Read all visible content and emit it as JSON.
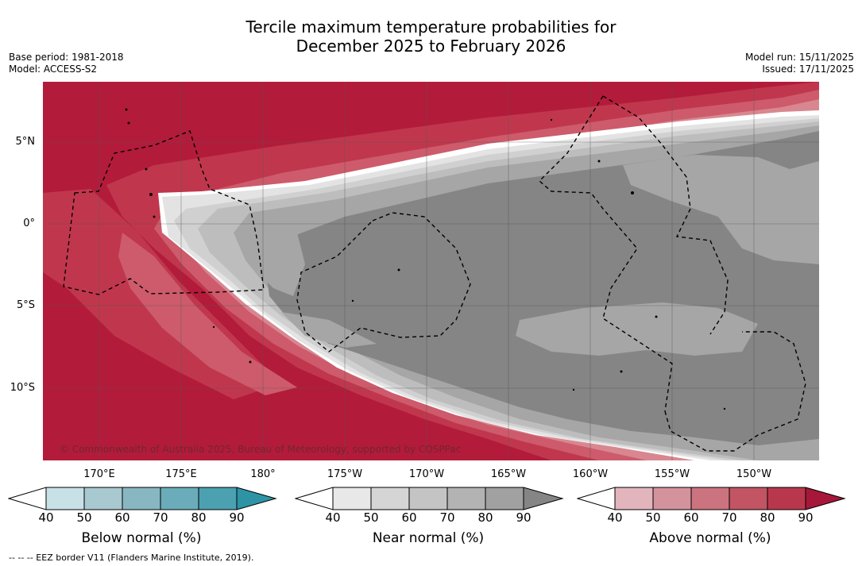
{
  "title": {
    "line1": "Tercile maximum temperature probabilities for",
    "line2": "December 2025 to February 2026"
  },
  "meta": {
    "base_period": "Base period: 1981-2018",
    "model": "Model: ACCESS-S2",
    "model_run": "Model run: 15/11/2025",
    "issued": "Issued: 17/11/2025"
  },
  "map": {
    "copyright": "© Commonwealth of Australia 2025, Bureau of Meteorology, supported by COSPPac",
    "lat_labels": [
      "5°N",
      "0°",
      "5°S",
      "10°S"
    ],
    "lon_labels": [
      "170°E",
      "175°E",
      "180°",
      "175°W",
      "170°W",
      "165°W",
      "160°W",
      "155°W",
      "150°W"
    ],
    "colors": {
      "above_90": "#b31b3a",
      "above_80": "#c0374d",
      "above_70": "#cd5b6b",
      "above_60": "#d88790",
      "near_40": "#e3e3e3",
      "near_50": "#d0d0d0",
      "near_60": "#bdbdbd",
      "near_70": "#a6a6a6",
      "near_90": "#858585"
    }
  },
  "colorbars": {
    "ticks": [
      "40",
      "50",
      "60",
      "70",
      "80",
      "90"
    ],
    "below": {
      "label": "Below normal (%)",
      "colors": [
        "#c7e1e7",
        "#a7c9cf",
        "#89b7c1",
        "#6aacba",
        "#4ba1b0",
        "#2e93a5"
      ]
    },
    "near": {
      "label": "Near normal (%)",
      "colors": [
        "#e8e8e8",
        "#d5d5d5",
        "#c4c4c4",
        "#b3b3b3",
        "#a1a1a1",
        "#858585"
      ]
    },
    "above": {
      "label": "Above normal (%)",
      "colors": [
        "#e2b5bc",
        "#d4939c",
        "#cc7380",
        "#c25463",
        "#b9374d",
        "#a6173a"
      ]
    }
  },
  "footnote": "--  --  -- EEZ border V11 (Flanders Marine Institute, 2019)."
}
